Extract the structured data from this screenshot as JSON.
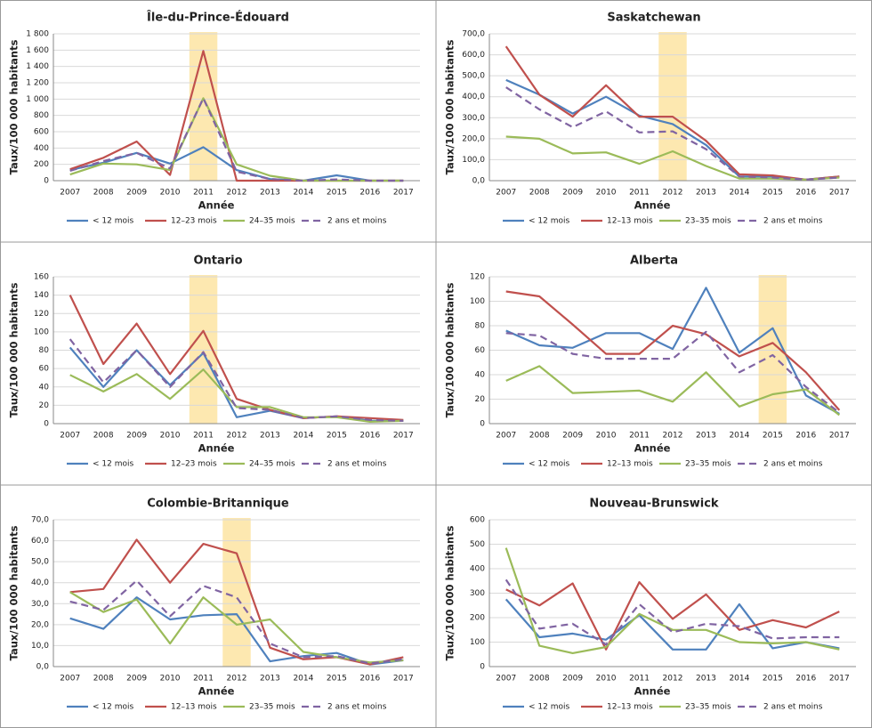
{
  "chart_data": [
    {
      "type": "line",
      "title": "Île-du-Prince-Édouard",
      "y_label": "Taux/100 000 habitants",
      "x_label": "Année",
      "highlight": "2011",
      "grid": true,
      "categories": [
        "2007",
        "2008",
        "2009",
        "2010",
        "2011",
        "2012",
        "2013",
        "2014",
        "2015",
        "2016",
        "2017"
      ],
      "ylim": [
        0,
        1800
      ],
      "yticks": [
        0,
        200,
        400,
        600,
        800,
        {
          "value": 1000,
          "label": "1 000"
        },
        {
          "value": 1200,
          "label": "1 200"
        },
        {
          "value": 1400,
          "label": "1 400"
        },
        {
          "value": 1600,
          "label": "1 600"
        },
        {
          "value": 1800,
          "label": "1 800"
        }
      ],
      "series": [
        {
          "name": "< 12 mois",
          "color": "#4f81bd",
          "dash": false,
          "values": [
            130,
            220,
            340,
            210,
            410,
            130,
            20,
            0,
            65,
            0,
            0
          ]
        },
        {
          "name": "12–23 mois",
          "color": "#c0504d",
          "dash": false,
          "values": [
            140,
            280,
            480,
            70,
            1590,
            0,
            0,
            0,
            0,
            0,
            0
          ]
        },
        {
          "name": "24–35 mois",
          "color": "#9bbb59",
          "dash": false,
          "values": [
            75,
            210,
            200,
            130,
            1010,
            200,
            60,
            0,
            0,
            0,
            0
          ]
        },
        {
          "name": "2 ans et moins",
          "color": "#8064a2",
          "dash": true,
          "values": [
            120,
            240,
            340,
            150,
            1010,
            110,
            20,
            0,
            15,
            0,
            0
          ]
        }
      ]
    },
    {
      "type": "line",
      "title": "Saskatchewan",
      "y_label": "Taux/100 000 habitants",
      "x_label": "Année",
      "highlight": "2012",
      "grid": true,
      "categories": [
        "2007",
        "2008",
        "2009",
        "2010",
        "2011",
        "2012",
        "2013",
        "2014",
        "2015",
        "2016",
        "2017"
      ],
      "ylim": [
        0,
        700
      ],
      "yticks": [
        {
          "value": 0,
          "label": "0,0"
        },
        {
          "value": 100,
          "label": "100,0"
        },
        {
          "value": 200,
          "label": "200,0"
        },
        {
          "value": 300,
          "label": "300,0"
        },
        {
          "value": 400,
          "label": "400,0"
        },
        {
          "value": 500,
          "label": "500,0"
        },
        {
          "value": 600,
          "label": "600,0"
        },
        {
          "value": 700,
          "label": "700,0"
        }
      ],
      "series": [
        {
          "name": "< 12 mois",
          "color": "#4f81bd",
          "dash": false,
          "values": [
            480,
            410,
            320,
            400,
            310,
            270,
            170,
            20,
            20,
            5,
            20
          ]
        },
        {
          "name": "12–13 mois",
          "color": "#c0504d",
          "dash": false,
          "values": [
            640,
            410,
            305,
            455,
            305,
            305,
            190,
            30,
            25,
            5,
            20
          ]
        },
        {
          "name": "23–35 mois",
          "color": "#9bbb59",
          "dash": false,
          "values": [
            210,
            200,
            130,
            135,
            80,
            140,
            70,
            10,
            10,
            5,
            15
          ]
        },
        {
          "name": "2 ans et moins",
          "color": "#8064a2",
          "dash": true,
          "values": [
            445,
            340,
            255,
            330,
            230,
            235,
            150,
            20,
            15,
            5,
            15
          ]
        }
      ]
    },
    {
      "type": "line",
      "title": "Ontario",
      "y_label": "Taux/100 000 habitants",
      "x_label": "Année",
      "highlight": "2011",
      "grid": true,
      "categories": [
        "2007",
        "2008",
        "2009",
        "2010",
        "2011",
        "2012",
        "2013",
        "2014",
        "2015",
        "2016",
        "2017"
      ],
      "ylim": [
        0,
        160
      ],
      "yticks": [
        0,
        20,
        40,
        60,
        80,
        100,
        120,
        140,
        160
      ],
      "series": [
        {
          "name": "< 12 mois",
          "color": "#4f81bd",
          "dash": false,
          "values": [
            83,
            40,
            80,
            42,
            77,
            7,
            14,
            6,
            8,
            3,
            3
          ]
        },
        {
          "name": "12–23 mois",
          "color": "#c0504d",
          "dash": false,
          "values": [
            140,
            65,
            109,
            54,
            101,
            27,
            15,
            6,
            8,
            6,
            4
          ]
        },
        {
          "name": "24–35 mois",
          "color": "#9bbb59",
          "dash": false,
          "values": [
            53,
            35,
            54,
            27,
            59,
            18,
            18,
            7,
            7,
            2,
            3
          ]
        },
        {
          "name": "2 ans et moins",
          "color": "#8064a2",
          "dash": true,
          "values": [
            92,
            45,
            80,
            40,
            78,
            17,
            15,
            6,
            8,
            4,
            3
          ]
        }
      ]
    },
    {
      "type": "line",
      "title": "Alberta",
      "y_label": "Taux/100 000 habitants",
      "x_label": "Année",
      "highlight": "2015",
      "grid": true,
      "categories": [
        "2007",
        "2008",
        "2009",
        "2010",
        "2011",
        "2012",
        "2013",
        "2014",
        "2015",
        "2016",
        "2017"
      ],
      "ylim": [
        0,
        120
      ],
      "yticks": [
        0,
        20,
        40,
        60,
        80,
        100,
        120
      ],
      "series": [
        {
          "name": "< 12 mois",
          "color": "#4f81bd",
          "dash": false,
          "values": [
            76,
            64,
            62,
            74,
            74,
            61,
            111,
            58,
            78,
            23,
            8
          ]
        },
        {
          "name": "12–13 mois",
          "color": "#c0504d",
          "dash": false,
          "values": [
            108,
            104,
            81,
            57,
            57,
            80,
            73,
            55,
            66,
            42,
            11
          ]
        },
        {
          "name": "23–35 mois",
          "color": "#9bbb59",
          "dash": false,
          "values": [
            35,
            47,
            25,
            26,
            27,
            18,
            42,
            14,
            24,
            28,
            7
          ]
        },
        {
          "name": "2 ans et moins",
          "color": "#8064a2",
          "dash": true,
          "values": [
            74,
            72,
            57,
            53,
            53,
            53,
            75,
            42,
            56,
            30,
            9
          ]
        }
      ]
    },
    {
      "type": "line",
      "title": "Colombie-Britannique",
      "y_label": "Taux/100 000 habitants",
      "x_label": "Année",
      "highlight": "2012",
      "grid": true,
      "categories": [
        "2007",
        "2008",
        "2009",
        "2010",
        "2011",
        "2012",
        "2013",
        "2014",
        "2015",
        "2016",
        "2017"
      ],
      "ylim": [
        0,
        70
      ],
      "yticks": [
        {
          "value": 0,
          "label": "0,0"
        },
        {
          "value": 10,
          "label": "10,0"
        },
        {
          "value": 20,
          "label": "20,0"
        },
        {
          "value": 30,
          "label": "30,0"
        },
        {
          "value": 40,
          "label": "40,0"
        },
        {
          "value": 50,
          "label": "50,0"
        },
        {
          "value": 60,
          "label": "60,0"
        },
        {
          "value": 70,
          "label": "70,0"
        }
      ],
      "series": [
        {
          "name": "< 12 mois",
          "color": "#4f81bd",
          "dash": false,
          "values": [
            23,
            18,
            33,
            22.5,
            24.5,
            25,
            2.5,
            5,
            6.5,
            1,
            3
          ]
        },
        {
          "name": "12–13 mois",
          "color": "#c0504d",
          "dash": false,
          "values": [
            35.5,
            37,
            60.5,
            40,
            58.5,
            54,
            9,
            3.5,
            4.5,
            1,
            4.5
          ]
        },
        {
          "name": "23–35 mois",
          "color": "#9bbb59",
          "dash": false,
          "values": [
            35.5,
            26,
            32,
            11,
            33,
            20,
            22.5,
            7,
            4.5,
            2,
            3
          ]
        },
        {
          "name": "2 ans et moins",
          "color": "#8064a2",
          "dash": true,
          "values": [
            31,
            27,
            41,
            24,
            38.5,
            33,
            11,
            4.5,
            5,
            1.5,
            3.5
          ]
        }
      ]
    },
    {
      "type": "line",
      "title": "Nouveau-Brunswick",
      "y_label": "Taux/100 000 habitants",
      "x_label": "Année",
      "grid": true,
      "categories": [
        "2007",
        "2008",
        "2009",
        "2010",
        "2011",
        "2012",
        "2013",
        "2014",
        "2015",
        "2016",
        "2017"
      ],
      "ylim": [
        0,
        600
      ],
      "yticks": [
        0,
        100,
        200,
        300,
        400,
        500,
        600
      ],
      "series": [
        {
          "name": "< 12 mois",
          "color": "#4f81bd",
          "dash": false,
          "values": [
            275,
            120,
            135,
            110,
            210,
            70,
            70,
            255,
            75,
            100,
            75
          ]
        },
        {
          "name": "12–13 mois",
          "color": "#c0504d",
          "dash": false,
          "values": [
            315,
            250,
            340,
            70,
            345,
            195,
            295,
            150,
            190,
            160,
            225
          ]
        },
        {
          "name": "23–35 mois",
          "color": "#9bbb59",
          "dash": false,
          "values": [
            485,
            85,
            55,
            80,
            215,
            150,
            150,
            100,
            95,
            100,
            70
          ]
        },
        {
          "name": "2 ans et moins",
          "color": "#8064a2",
          "dash": true,
          "values": [
            355,
            155,
            175,
            90,
            255,
            140,
            175,
            165,
            115,
            120,
            120
          ]
        }
      ]
    }
  ]
}
